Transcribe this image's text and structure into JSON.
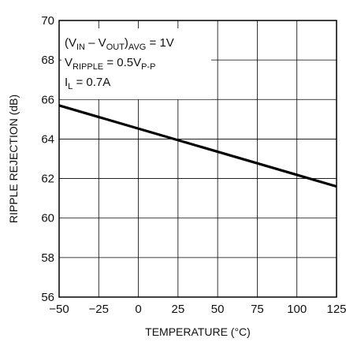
{
  "chart_data": {
    "type": "line",
    "xlabel": "TEMPERATURE (°C)",
    "ylabel": "RIPPLE REJECTION (dB)",
    "xlim": [
      -50,
      125
    ],
    "ylim": [
      56,
      70
    ],
    "x_ticks": [
      -50,
      -25,
      0,
      25,
      50,
      75,
      100,
      125
    ],
    "y_ticks": [
      56,
      58,
      60,
      62,
      64,
      66,
      68,
      70
    ],
    "x_tick_labels": [
      "−50",
      "−25",
      "0",
      "25",
      "50",
      "75",
      "100",
      "125"
    ],
    "y_tick_labels": [
      "56",
      "58",
      "60",
      "62",
      "64",
      "66",
      "68",
      "70"
    ],
    "grid": true,
    "series": [
      {
        "x": [
          -50,
          125
        ],
        "y": [
          65.7,
          61.6
        ]
      }
    ],
    "annotations": {
      "line1": {
        "open": "(V",
        "sub1": "IN",
        "dash": " – V",
        "sub2": "OUT",
        "close": ")",
        "sub3": "AVG",
        "tail": " = 1V"
      },
      "line2": {
        "base": "V",
        "sub": "RIPPLE",
        "mid": " = 0.5V",
        "sub2": "P-P"
      },
      "line3": {
        "base": "I",
        "sub": "L",
        "tail": " = 0.7A"
      }
    },
    "colors": {
      "line": "#000000",
      "grid": "#000000",
      "frame": "#000000"
    }
  }
}
